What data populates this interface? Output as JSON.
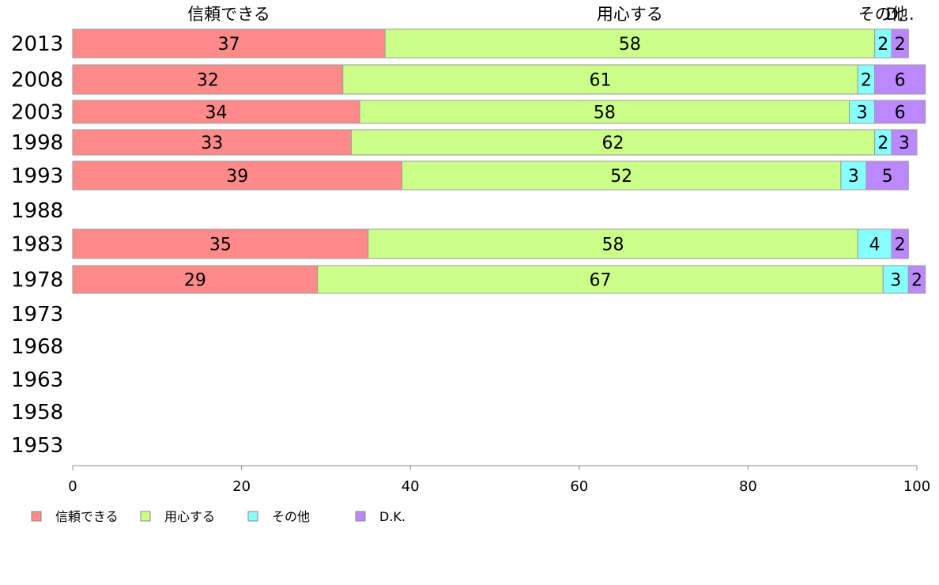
{
  "chart_data": {
    "type": "bar",
    "orientation": "horizontal",
    "stacked": true,
    "categories": [
      "2013",
      "2008",
      "2003",
      "1998",
      "1993",
      "1988",
      "1983",
      "1978",
      "1973",
      "1968",
      "1963",
      "1958",
      "1953"
    ],
    "series": [
      {
        "name": "信頼できる",
        "color": "#ff8a8a",
        "values": [
          37,
          32,
          34,
          33,
          39,
          null,
          35,
          29,
          null,
          null,
          null,
          null,
          null
        ]
      },
      {
        "name": "用心する",
        "color": "#ccff88",
        "values": [
          58,
          61,
          58,
          62,
          52,
          null,
          58,
          67,
          null,
          null,
          null,
          null,
          null
        ]
      },
      {
        "name": "その他",
        "color": "#88ffff",
        "values": [
          2,
          2,
          3,
          2,
          3,
          null,
          4,
          3,
          null,
          null,
          null,
          null,
          null
        ]
      },
      {
        "name": "D.K.",
        "color": "#bb88ff",
        "values": [
          2,
          6,
          6,
          3,
          5,
          null,
          2,
          2,
          null,
          null,
          null,
          null,
          null
        ]
      }
    ],
    "top_labels": [
      "信頼できる",
      "用心する",
      "その他",
      "D..."
    ],
    "xlim": [
      0,
      100
    ],
    "xticks": [
      "0",
      "20",
      "40",
      "60",
      "80",
      "100"
    ],
    "grid": false,
    "legend_position": "bottom-left"
  }
}
